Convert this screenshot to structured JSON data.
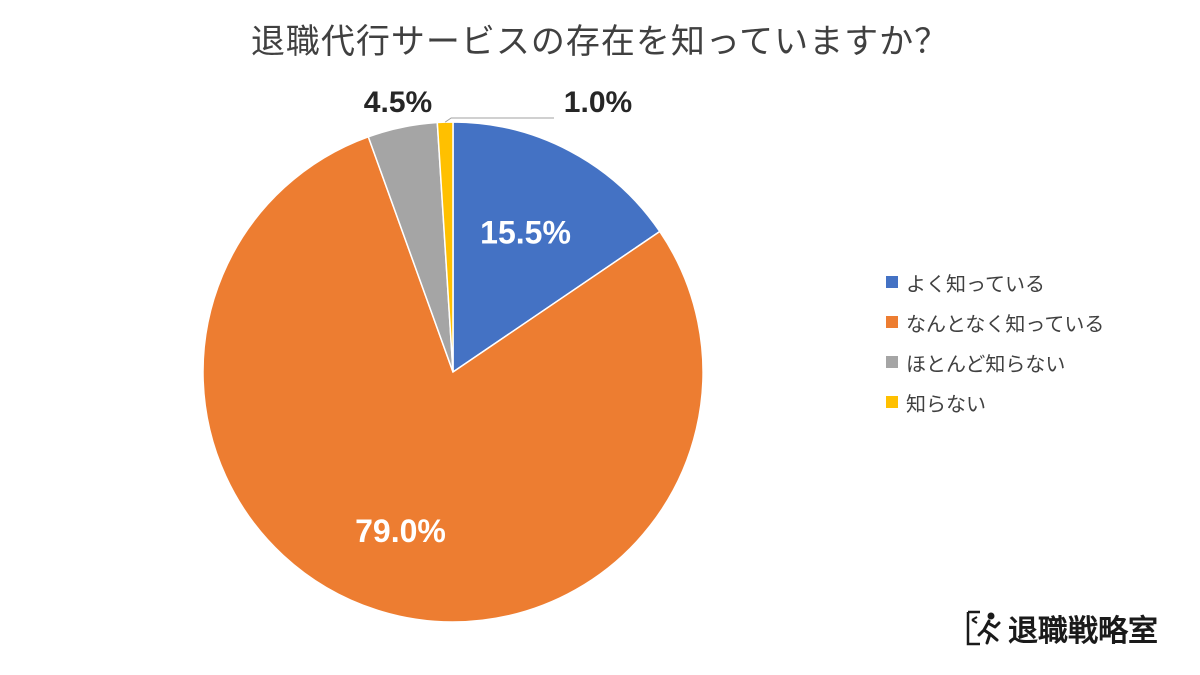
{
  "chart_data": {
    "type": "pie",
    "title": "退職代行サービスの存在を知っていますか？",
    "categories": [
      "よく知っている",
      "なんとなく知っている",
      "ほとんど知らない",
      "知らない"
    ],
    "values": [
      15.5,
      79.0,
      4.5,
      1.0
    ],
    "data_labels": [
      "15.5%",
      "79.0%",
      "4.5%",
      "1.0%"
    ],
    "colors": [
      "#4472C4",
      "#ED7D31",
      "#A5A5A5",
      "#FFC000"
    ],
    "legend_position": "right",
    "start_angle": "12 o'clock, clockwise"
  },
  "logo": {
    "text": "退職戦略室",
    "icon": "running-exit-icon"
  }
}
